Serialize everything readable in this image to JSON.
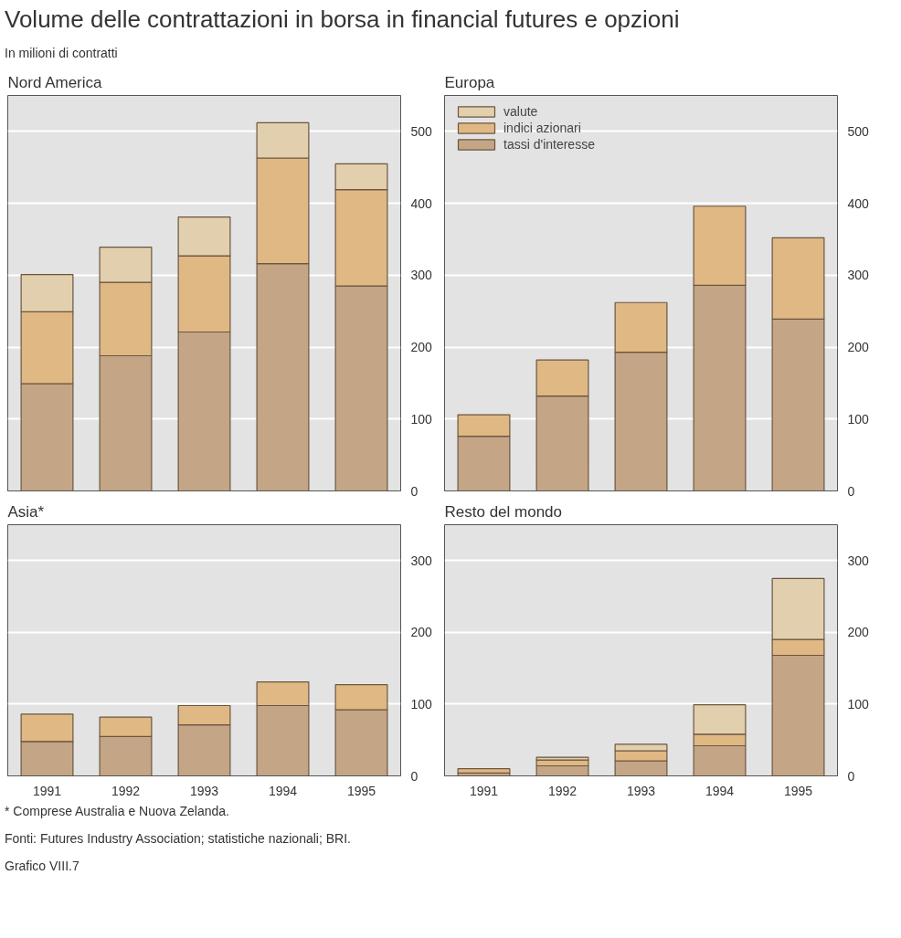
{
  "chart_data": [
    {
      "type": "bar",
      "title": "Nord America",
      "annotations": [
        "Volume delle contrattazioni in borsa in financial futures e opzioni",
        "In milioni di contratti"
      ],
      "stacked": true,
      "categories": [
        "1991",
        "1992",
        "1993",
        "1994",
        "1995"
      ],
      "ylim": [
        0,
        550
      ],
      "yticks": [
        0,
        100,
        200,
        300,
        400,
        500
      ],
      "grid": "y",
      "tick_labels": "y",
      "series": [
        {
          "color": "#c4a585",
          "values": [
            149,
            188,
            221,
            316,
            285
          ]
        },
        {
          "color": "#e0b884",
          "values": [
            100,
            102,
            106,
            147,
            134
          ]
        },
        {
          "color": "#e2cfad",
          "values": [
            52,
            49,
            54,
            49,
            36
          ]
        }
      ]
    },
    {
      "type": "bar",
      "title": "Europa",
      "stacked": true,
      "categories": [
        "1991",
        "1992",
        "1993",
        "1994",
        "1995"
      ],
      "ylim": [
        0,
        550
      ],
      "yticks": [
        0,
        100,
        200,
        300,
        400,
        500
      ],
      "grid": "y",
      "tick_labels": "y",
      "legend": "top left",
      "series": [
        {
          "name": "tassi d'interesse",
          "color": "#c4a585",
          "values": [
            76,
            132,
            193,
            286,
            239
          ]
        },
        {
          "name": "indici azionari",
          "color": "#e0b884",
          "values": [
            30,
            50,
            69,
            110,
            113
          ]
        },
        {
          "name": "valute",
          "color": "#e2cfad",
          "values": [
            null,
            null,
            null,
            null,
            null
          ]
        }
      ]
    },
    {
      "type": "bar",
      "title": "Asia*",
      "stacked": true,
      "categories": [
        "1991",
        "1992",
        "1993",
        "1994",
        "1995"
      ],
      "ylim": [
        0,
        350
      ],
      "yticks": [
        0,
        100,
        200,
        300
      ],
      "grid": "y",
      "series": [
        {
          "color": "#c4a585",
          "values": [
            48,
            55,
            71,
            98,
            92
          ]
        },
        {
          "color": "#e0b884",
          "values": [
            38,
            27,
            27,
            33,
            35
          ]
        },
        {
          "color": "#e2cfad",
          "values": [
            null,
            null,
            null,
            null,
            null
          ]
        }
      ]
    },
    {
      "type": "bar",
      "title": "Resto del mondo",
      "stacked": true,
      "categories": [
        "1991",
        "1992",
        "1993",
        "1994",
        "1995"
      ],
      "ylim": [
        0,
        350
      ],
      "yticks": [
        0,
        100,
        200,
        300
      ],
      "grid": "y",
      "annotations": [
        "* Comprese Australia e Nuova Zelanda.",
        "Fonti: Futures Industry Association; statistiche nazionali; BRI.",
        "Grafico VIII.7"
      ],
      "series": [
        {
          "color": "#c4a585",
          "values": [
            4,
            14,
            21,
            42,
            168
          ]
        },
        {
          "color": "#e0b884",
          "values": [
            6,
            8,
            14,
            16,
            22
          ]
        },
        {
          "color": "#e2cfad",
          "values": [
            null,
            4,
            9,
            41,
            85
          ]
        }
      ]
    }
  ]
}
